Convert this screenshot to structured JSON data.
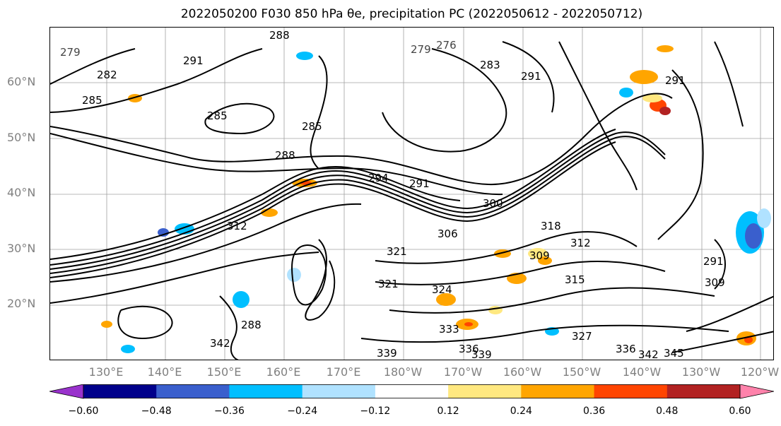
{
  "title": "2022050200 F030 850 hPa θe, precipitation PC (2022050612 - 2022050712)",
  "lat_labels": [
    "60°N",
    "50°N",
    "40°N",
    "30°N",
    "20°N"
  ],
  "lon_labels": [
    "130°E",
    "140°E",
    "150°E",
    "160°E",
    "170°E",
    "180°W",
    "170°W",
    "160°W",
    "150°W",
    "140°W",
    "130°W",
    "120°W"
  ],
  "contour_labels": [
    "279",
    "276",
    "279",
    "282",
    "283",
    "285",
    "285",
    "285",
    "288",
    "288",
    "291",
    "291",
    "291",
    "291",
    "294",
    "300",
    "306",
    "309",
    "309",
    "312",
    "312",
    "315",
    "318",
    "321",
    "321",
    "324",
    "327",
    "333",
    "336",
    "336",
    "339",
    "339",
    "342",
    "342",
    "345",
    "288",
    "291"
  ],
  "colorbar": {
    "colors": [
      "#9932cc",
      "#00008b",
      "#3a5fcd",
      "#00bfff",
      "#b0e2ff",
      "#ffffff",
      "#ffe880",
      "#ffa500",
      "#ff4500",
      "#b22222",
      "#ff82ab"
    ],
    "ticks": [
      "−0.60",
      "−0.48",
      "−0.36",
      "−0.24",
      "−0.12",
      "0.12",
      "0.24",
      "0.36",
      "0.48",
      "0.60"
    ]
  }
}
